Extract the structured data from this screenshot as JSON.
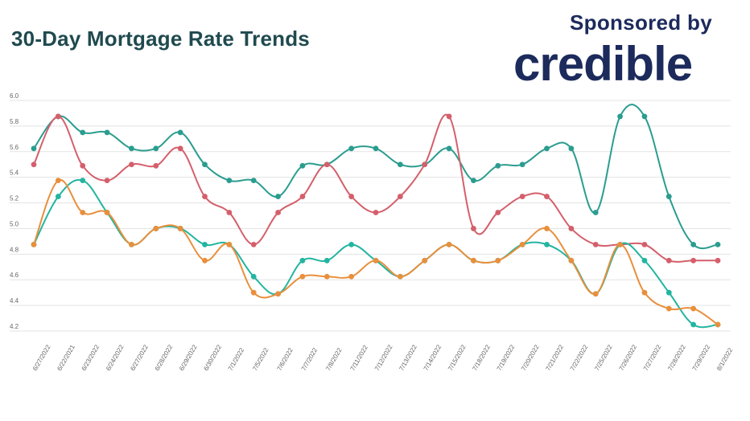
{
  "header": {
    "title": "30-Day Mortgage Rate Trends",
    "sponsor_label": "Sponsored by",
    "brand": "credible"
  },
  "colors": {
    "title": "#1f4a4f",
    "brand": "#1c2a5c",
    "grid": "#e3e3e3"
  },
  "chart_data": {
    "type": "line",
    "title": "30-Day Mortgage Rate Trends",
    "xlabel": "",
    "ylabel": "",
    "ylim": [
      4.2,
      6.0
    ],
    "yticks": [
      6.0,
      5.8,
      5.6,
      5.4,
      5.2,
      5.0,
      4.8,
      4.6,
      4.4,
      4.2
    ],
    "grid": true,
    "legend": "none",
    "categories": [
      "6/27/2022",
      "6/22/2021",
      "6/23/2022",
      "6/24/2022",
      "6/27/2022",
      "6/28/2022",
      "6/29/2022",
      "6/30/2022",
      "7/1/2022",
      "7/5/2022",
      "7/6/2022",
      "7/7/2022",
      "7/8/2022",
      "7/11/2022",
      "7/12/2022",
      "7/13/2022",
      "7/14/2022",
      "7/15/2022",
      "7/18/2022",
      "7/19/2022",
      "7/20/2022",
      "7/21/2022",
      "7/22/2022",
      "7/25/2022",
      "7/26/2022",
      "7/27/2022",
      "7/28/2022",
      "7/29/2022",
      "8/1/2022"
    ],
    "series": [
      {
        "color": "#2a9d8f",
        "values": [
          5.625,
          5.875,
          5.75,
          5.75,
          5.625,
          5.625,
          5.75,
          5.5,
          5.375,
          5.375,
          5.25,
          5.49,
          5.5,
          5.625,
          5.625,
          5.5,
          5.5,
          5.625,
          5.375,
          5.49,
          5.5,
          5.625,
          5.625,
          5.125,
          5.875,
          5.875,
          5.25,
          4.875,
          4.875
        ]
      },
      {
        "color": "#d45f6b",
        "values": [
          5.5,
          5.875,
          5.49,
          5.375,
          5.5,
          5.49,
          5.625,
          5.25,
          5.125,
          4.875,
          5.125,
          5.25,
          5.5,
          5.25,
          5.125,
          5.25,
          5.5,
          5.875,
          5.0,
          5.125,
          5.25,
          5.25,
          5.0,
          4.875,
          4.875,
          4.875,
          4.75,
          4.75,
          4.75
        ]
      },
      {
        "color": "#22b5a0",
        "values": [
          4.875,
          5.25,
          5.375,
          5.125,
          4.875,
          5.0,
          5.0,
          4.875,
          4.875,
          4.625,
          4.49,
          4.75,
          4.75,
          4.875,
          4.75,
          4.625,
          4.75,
          4.875,
          4.75,
          4.75,
          4.875,
          4.875,
          4.75,
          4.49,
          4.875,
          4.75,
          4.5,
          4.25,
          4.25
        ]
      },
      {
        "color": "#e98f3c",
        "values": [
          4.875,
          5.375,
          5.125,
          5.125,
          4.875,
          5.0,
          5.0,
          4.75,
          4.875,
          4.5,
          4.49,
          4.625,
          4.625,
          4.625,
          4.75,
          4.625,
          4.75,
          4.875,
          4.75,
          4.75,
          4.875,
          5.0,
          4.75,
          4.49,
          4.875,
          4.5,
          4.375,
          4.375,
          4.25
        ]
      }
    ]
  }
}
